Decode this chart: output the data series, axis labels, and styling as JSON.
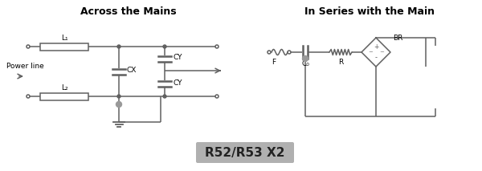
{
  "title_left": "Across the Mains",
  "title_right": "In Series with the Main",
  "label_powerline": "Power line",
  "label_L1": "L₁",
  "label_L2": "L₂",
  "label_CX": "CX",
  "label_CY1": "CY",
  "label_CY2": "CY",
  "label_F": "F",
  "label_C": "C₀",
  "label_R": "R",
  "label_BR": "BR",
  "label_badge": "R52/R53 X2",
  "bg_color": "#ffffff",
  "line_color": "#606060",
  "badge_bg": "#b0b0b0",
  "badge_text_color": "#222222",
  "title_fontsize": 9,
  "label_fontsize": 6.5,
  "badge_fontsize": 11
}
